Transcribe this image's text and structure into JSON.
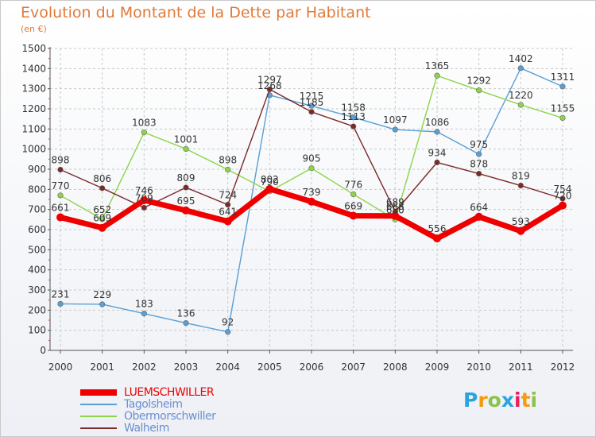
{
  "title": "Evolution du Montant de la Dette par Habitant",
  "subtitle": "(en €)",
  "logo": {
    "letters": [
      "P",
      "r",
      "o",
      "x",
      "i",
      "t",
      "i"
    ],
    "colors": [
      "#2aa3e0",
      "#f39c12",
      "#8bc34a",
      "#2aa3e0",
      "#e91e63",
      "#f39c12",
      "#8bc34a"
    ]
  },
  "chart_data": {
    "type": "line",
    "x": [
      "2000",
      "2001",
      "2002",
      "2003",
      "2004",
      "2005",
      "2006",
      "2007",
      "2008",
      "2009",
      "2010",
      "2011",
      "2012"
    ],
    "ylim": [
      0,
      1500
    ],
    "yticks": [
      0,
      100,
      200,
      300,
      400,
      500,
      600,
      700,
      800,
      900,
      1000,
      1100,
      1200,
      1300,
      1400,
      1500
    ],
    "grid": true,
    "series": [
      {
        "name": "LUEMSCHWILLER",
        "color": "#ee0000",
        "values": [
          661,
          609,
          746,
          695,
          641,
          802,
          739,
          669,
          668,
          556,
          664,
          593,
          720
        ],
        "labels": [
          "661",
          "609",
          "746",
          "695",
          "641",
          "802",
          "739",
          "669",
          "668",
          "556",
          "664",
          "593",
          "720"
        ]
      },
      {
        "name": "Tagolsheim",
        "color": "#5a9fd4",
        "values": [
          231,
          229,
          183,
          136,
          92,
          1268,
          1215,
          1158,
          1097,
          1086,
          975,
          1402,
          1311
        ],
        "labels": [
          "231",
          "229",
          "183",
          "136",
          "92",
          "1268",
          "1215",
          "1158",
          "1097",
          "1086",
          "975",
          "1402",
          "1311"
        ]
      },
      {
        "name": "Obermorschwiller",
        "color": "#8ed44a",
        "values": [
          770,
          652,
          1083,
          1001,
          898,
          790,
          905,
          776,
          650,
          1365,
          1292,
          1220,
          1155
        ],
        "labels": [
          "770",
          "652",
          "1083",
          "1001",
          "898",
          "790",
          "905",
          "776",
          "650",
          "1365",
          "1292",
          "1220",
          "1155"
        ]
      },
      {
        "name": "Walheim",
        "color": "#7a2a2a",
        "values": [
          898,
          806,
          709,
          809,
          724,
          1297,
          1185,
          1113,
          689,
          934,
          878,
          819,
          754
        ],
        "labels": [
          "898",
          "806",
          "709",
          "809",
          "724",
          "1297",
          "1185",
          "1113",
          "689",
          "934",
          "878",
          "819",
          "754"
        ]
      }
    ]
  }
}
